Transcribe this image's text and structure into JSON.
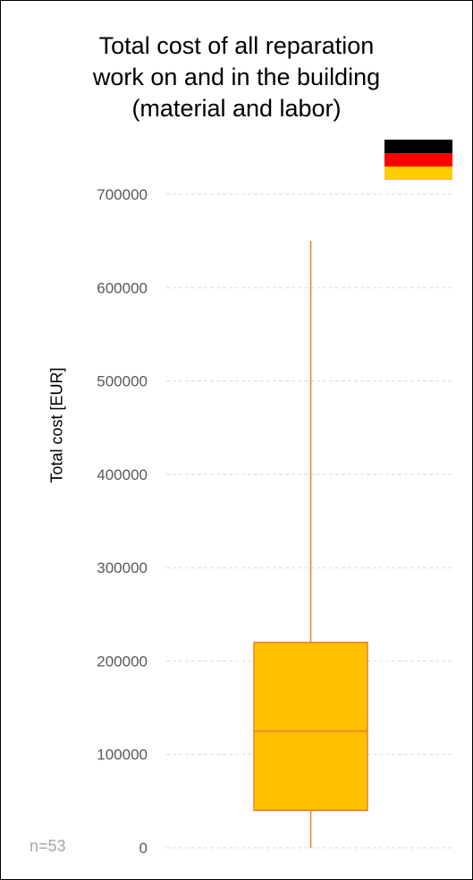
{
  "chart_data": {
    "type": "box",
    "title_lines": [
      "Total cost of all reparation",
      "work on and in the building",
      "(material and labor)"
    ],
    "ylabel": "Total cost  [EUR]",
    "yticks": [
      0,
      100000,
      200000,
      300000,
      400000,
      500000,
      600000,
      700000
    ],
    "ylim": [
      0,
      700000
    ],
    "grid": "dashed horizontal",
    "sample_label": "n=53",
    "box": {
      "min": 0,
      "q1": 40000,
      "median": 125000,
      "q3": 220000,
      "max": 650000
    },
    "colors": {
      "box_fill": "#FFC000",
      "box_stroke": "#ED7D31",
      "grid": "#D9D9D9",
      "tick_text": "#595959"
    },
    "flag": {
      "name": "germany-flag-icon",
      "stripes": [
        "#000000",
        "#FF0000",
        "#FFCC00"
      ]
    }
  }
}
